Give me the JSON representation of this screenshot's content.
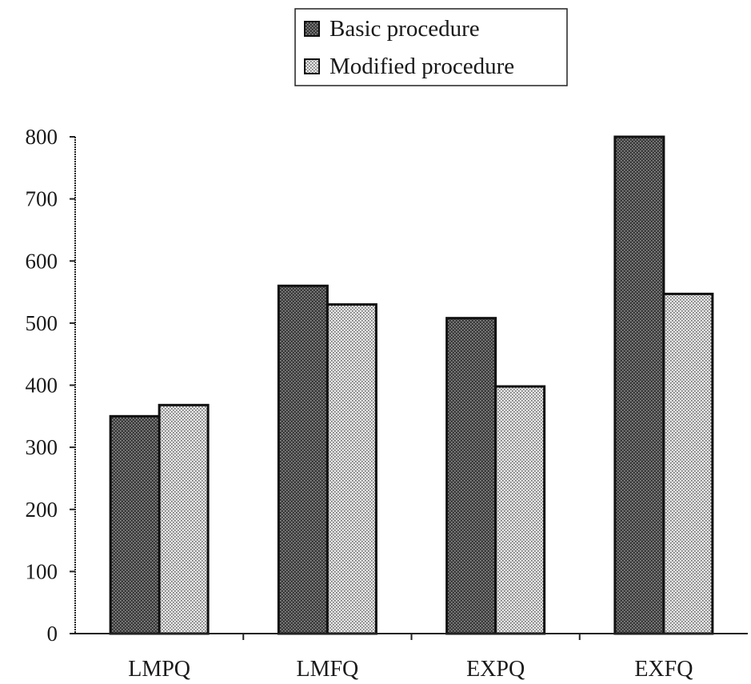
{
  "chart_data": {
    "type": "bar",
    "title": "",
    "xlabel": "",
    "ylabel": "",
    "categories": [
      "LMPQ",
      "LMFQ",
      "EXPQ",
      "EXFQ"
    ],
    "series": [
      {
        "name": "Basic procedure",
        "values": [
          350,
          560,
          508,
          800
        ]
      },
      {
        "name": "Modified procedure",
        "values": [
          368,
          530,
          398,
          547
        ]
      }
    ],
    "ylim": [
      0,
      800
    ],
    "yticks": [
      0,
      100,
      200,
      300,
      400,
      500,
      600,
      700,
      800
    ],
    "grid": false,
    "legend_position": "top-center",
    "colors": {
      "basic": "#2e2e2e",
      "modified": "#bdbdbd",
      "axis": "#222222"
    }
  }
}
